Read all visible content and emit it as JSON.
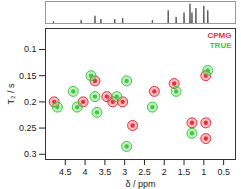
{
  "chart_data": [
    {
      "type": "line",
      "x": [
        5.0,
        4.81,
        4.8,
        4.79,
        4.11,
        4.1,
        4.09,
        3.76,
        3.75,
        3.74,
        3.61,
        3.6,
        3.59,
        3.26,
        3.25,
        3.24,
        3.06,
        3.05,
        3.04,
        2.31,
        2.3,
        2.29,
        1.91,
        1.9,
        1.89,
        1.71,
        1.7,
        1.69,
        1.51,
        1.5,
        1.49,
        1.36,
        1.35,
        1.34,
        1.31,
        1.3,
        1.29,
        1.21,
        1.2,
        1.19,
        1.01,
        1.0,
        0.99,
        0.91,
        0.9,
        0.89,
        0.2
      ],
      "values": [
        0,
        0,
        0.1,
        0,
        0,
        0.15,
        0,
        0,
        0.35,
        0,
        0,
        0.2,
        0,
        0,
        0.2,
        0,
        0,
        0.25,
        0,
        0,
        0.15,
        0,
        0,
        0.6,
        0,
        0,
        0.3,
        0,
        0,
        0.5,
        0,
        0,
        0.9,
        0,
        0,
        0.5,
        0,
        0,
        0.7,
        0,
        0,
        0.8,
        0,
        0,
        0.6,
        0,
        0
      ],
      "color": "#444444",
      "xlim": [
        5.0,
        0.2
      ],
      "ylim": [
        0,
        1
      ],
      "tick_labels": false
    },
    {
      "type": "scatter",
      "x_label": "δ / ppm",
      "y_label": "T₂ / s",
      "xlim": [
        5.0,
        0.2
      ],
      "ylim": [
        0.31,
        0.06
      ],
      "xticks": [
        4.5,
        4,
        3.5,
        3,
        2.5,
        2,
        1.5,
        1,
        0.5
      ],
      "yticks": [
        0.1,
        0.15,
        0.2,
        0.25,
        0.3
      ],
      "grid": false,
      "legend": "top-right",
      "series": [
        {
          "name": "CPMG",
          "color": "#e8303a",
          "x": [
            4.78,
            4.05,
            3.75,
            3.45,
            3.3,
            3.05,
            2.8,
            2.25,
            1.75,
            1.3,
            0.95,
            0.95,
            0.95
          ],
          "values": [
            0.2,
            0.2,
            0.16,
            0.19,
            0.2,
            0.2,
            0.245,
            0.18,
            0.165,
            0.24,
            0.15,
            0.24,
            0.27
          ]
        },
        {
          "name": "TRUE",
          "color": "#3cc840",
          "x": [
            4.7,
            4.3,
            4.2,
            3.85,
            3.75,
            3.7,
            3.2,
            2.95,
            2.95,
            2.3,
            1.7,
            1.3,
            0.9
          ],
          "values": [
            0.21,
            0.18,
            0.21,
            0.15,
            0.19,
            0.22,
            0.19,
            0.285,
            0.16,
            0.21,
            0.18,
            0.26,
            0.14
          ]
        }
      ]
    }
  ]
}
